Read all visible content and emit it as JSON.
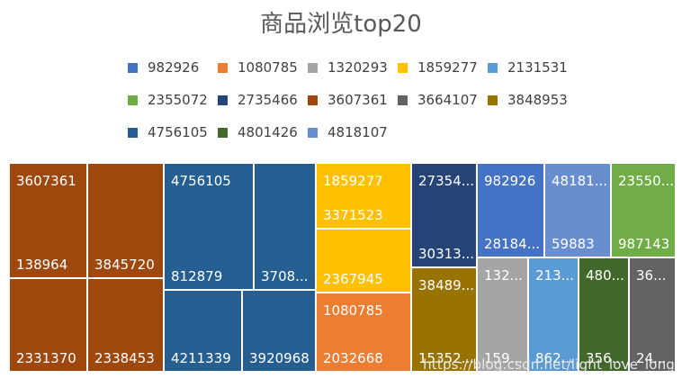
{
  "chart_data": {
    "type": "treemap",
    "title": "商品浏览top20",
    "legend": {
      "placement": "top",
      "entries": [
        {
          "name": "982926",
          "color": "#4472c4"
        },
        {
          "name": "1080785",
          "color": "#ed7d31"
        },
        {
          "name": "1320293",
          "color": "#a5a5a5"
        },
        {
          "name": "1859277",
          "color": "#ffc000"
        },
        {
          "name": "2131531",
          "color": "#5b9bd5"
        },
        {
          "name": "2355072",
          "color": "#70ad47"
        },
        {
          "name": "2735466",
          "color": "#264478"
        },
        {
          "name": "3607361",
          "color": "#9e480e"
        },
        {
          "name": "3664107",
          "color": "#636363"
        },
        {
          "name": "3848953",
          "color": "#997300"
        },
        {
          "name": "4756105",
          "color": "#255e91"
        },
        {
          "name": "4801426",
          "color": "#43682b"
        },
        {
          "name": "4818107",
          "color": "#698ed0"
        }
      ]
    },
    "tiles": [
      {
        "group": "3607361",
        "top": "3607361",
        "bottom": "138964"
      },
      {
        "group": "3607361",
        "top": "",
        "bottom": "3845720"
      },
      {
        "group": "3607361",
        "top": "",
        "bottom": "2331370"
      },
      {
        "group": "3607361",
        "top": "",
        "bottom": "2338453"
      },
      {
        "group": "4756105",
        "top": "4756105",
        "bottom": "812879"
      },
      {
        "group": "4756105",
        "top": "",
        "bottom": "3708..."
      },
      {
        "group": "4756105",
        "top": "",
        "bottom": "4211339"
      },
      {
        "group": "4756105",
        "top": "",
        "bottom": "3920968"
      },
      {
        "group": "1859277",
        "top": "1859277",
        "bottom": "3371523"
      },
      {
        "group": "1859277",
        "top": "",
        "bottom": "2367945"
      },
      {
        "group": "1080785",
        "top": "1080785",
        "bottom": "2032668"
      },
      {
        "group": "2735466",
        "top": "27354...",
        "bottom": "30313..."
      },
      {
        "group": "3848953",
        "top": "38489...",
        "bottom": "15352..."
      },
      {
        "group": "982926",
        "top": "982926",
        "bottom": "28184..."
      },
      {
        "group": "4818107",
        "top": "48181...",
        "bottom": "59883"
      },
      {
        "group": "2355072",
        "top": "23550...",
        "bottom": "987143"
      },
      {
        "group": "1320293",
        "top": "132...",
        "bottom": "159..."
      },
      {
        "group": "2131531",
        "top": "213...",
        "bottom": "862..."
      },
      {
        "group": "4801426",
        "top": "480...",
        "bottom": "356..."
      },
      {
        "group": "3664107",
        "top": "36...",
        "bottom": "24..."
      }
    ]
  },
  "watermark": "https://blog.csdn.net/light_love_long"
}
